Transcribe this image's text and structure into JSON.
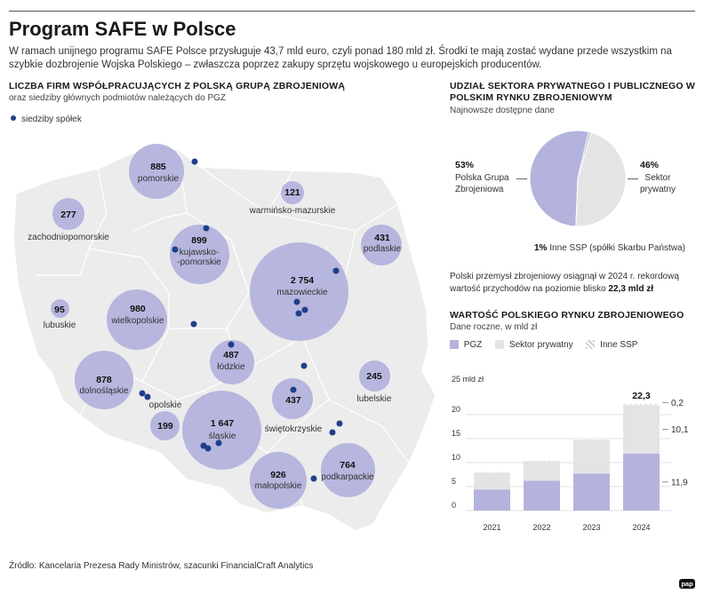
{
  "header": {
    "title": "Program SAFE w Polsce",
    "intro": "W ramach unijnego programu SAFE Polsce przysługuje 43,7 mld euro, czyli ponad 180 mld zł. Środki te mają zostać wydane przede wszystkim na szybkie dozbrojenie Wojska Polskiego – zwłaszcza poprzez zakupy sprzętu wojskowego u europejskich producentów."
  },
  "map": {
    "title": "LICZBA FIRM WSPÓŁPRACUJĄCYCH Z POLSKĄ GRUPĄ ZBROJENIOWĄ",
    "subtitle": "oraz siedziby głównych podmiotów należących do PGZ",
    "legend_label": "siedziby spółek",
    "colors": {
      "bubble": "#b3b3dd",
      "dot": "#1f3f8a",
      "land": "#ececec"
    },
    "regions": [
      {
        "name": "pomorskie",
        "count": "885"
      },
      {
        "name": "warmińsko-mazurskie",
        "count": "121"
      },
      {
        "name": "zachodniopomorskie",
        "count": "277"
      },
      {
        "name": "kujawsko-\n-pomorskie",
        "count": "899"
      },
      {
        "name": "podlaskie",
        "count": "431"
      },
      {
        "name": "mazowieckie",
        "count": "2 754"
      },
      {
        "name": "lubuskie",
        "count": "95"
      },
      {
        "name": "wielkopolskie",
        "count": "980"
      },
      {
        "name": "łódzkie",
        "count": "487"
      },
      {
        "name": "dolnośląskie",
        "count": "878"
      },
      {
        "name": "opolskie",
        "count": "199"
      },
      {
        "name": "śląskie",
        "count": "1 647"
      },
      {
        "name": "świętokrzyskie",
        "count": "437"
      },
      {
        "name": "lubelskie",
        "count": "245"
      },
      {
        "name": "małopolskie",
        "count": "926"
      },
      {
        "name": "podkarpackie",
        "count": "764"
      }
    ]
  },
  "pie": {
    "title": "UDZIAŁ SEKTORA PRYWATNEGO I PUBLICZNEGO W POLSKIM RYNKU ZBROJENIOWYM",
    "subtitle": "Najnowsze dostępne dane",
    "left_pct": "53%",
    "left_label": "Polska Grupa\nZbrojeniowa",
    "right_pct": "46%",
    "right_label": "Sektor\nprywatny",
    "bottom_pct": "1%",
    "bottom_label": "Inne SSP (spółki Skarbu Państwa)",
    "colors": {
      "pgz": "#b3b3dd",
      "private": "#e4e4e4",
      "other": "#cfcfcf"
    }
  },
  "note": {
    "text": "Polski przemysł zbrojeniowy osiągnął w 2024 r. rekordową wartość przychodów na poziomie blisko",
    "value": "22,3 mld zł"
  },
  "bars": {
    "title": "WARTOŚĆ POLSKIEGO RYNKU ZBROJENIOWEGO",
    "subtitle": "Dane roczne, w mld zł",
    "legend": {
      "pgz": "PGZ",
      "private": "Sektor prywatny",
      "other": "Inne SSP"
    },
    "unit_label": "25 mld zł",
    "total_2024": "22,3",
    "seg_labels_2024": [
      "0,2",
      "10,1",
      "11,9"
    ]
  },
  "chart_data": [
    {
      "type": "bar",
      "title": "WARTOŚĆ POLSKIEGO RYNKU ZBROJENIOWEGO",
      "subtitle": "Dane roczne, w mld zł",
      "categories": [
        "2021",
        "2022",
        "2023",
        "2024"
      ],
      "stacked": true,
      "series": [
        {
          "name": "PGZ",
          "values": [
            4.4,
            6.2,
            7.7,
            11.9
          ],
          "color": "#b3b3dd"
        },
        {
          "name": "Sektor prywatny",
          "values": [
            3.5,
            4.1,
            7.0,
            10.1
          ],
          "color": "#e4e4e4"
        },
        {
          "name": "Inne SSP",
          "values": [
            0.1,
            0.1,
            0.1,
            0.2
          ],
          "color": "#d0d0d0"
        }
      ],
      "ylim": [
        0,
        25
      ],
      "yticks": [
        "0",
        "5",
        "10",
        "15",
        "20"
      ],
      "grid": true
    },
    {
      "type": "pie",
      "title": "UDZIAŁ SEKTORA PRYWATNEGO I PUBLICZNEGO W POLSKIM RYNKU ZBROJENIOWYM",
      "labels": [
        "Polska Grupa Zbrojeniowa",
        "Sektor prywatny",
        "Inne SSP (spółki Skarbu Państwa)"
      ],
      "values": [
        53,
        46,
        1
      ]
    }
  ],
  "footer": {
    "source": "Źródło: Kancelaria Prezesa Rady Ministrów, szacunki FinancialCraft Analytics",
    "logo": "pap"
  }
}
